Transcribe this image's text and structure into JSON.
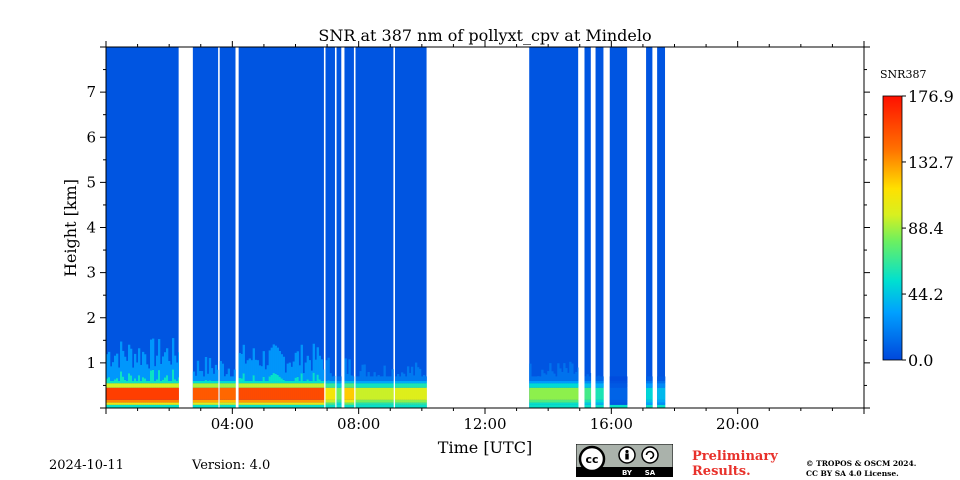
{
  "chart_data": {
    "type": "heatmap",
    "title": "SNR at 387 nm of pollyxt_cpv at Mindelo",
    "xlabel": "Time [UTC]",
    "ylabel": "Height [km]",
    "xlim": [
      0,
      24
    ],
    "ylim": [
      0,
      8
    ],
    "x_ticks": [
      {
        "value": 4,
        "label": "04:00"
      },
      {
        "value": 8,
        "label": "08:00"
      },
      {
        "value": 12,
        "label": "12:00"
      },
      {
        "value": 16,
        "label": "16:00"
      },
      {
        "value": 20,
        "label": "20:00"
      }
    ],
    "y_ticks": [
      {
        "value": 1,
        "label": "1"
      },
      {
        "value": 2,
        "label": "2"
      },
      {
        "value": 3,
        "label": "3"
      },
      {
        "value": 4,
        "label": "4"
      },
      {
        "value": 5,
        "label": "5"
      },
      {
        "value": 6,
        "label": "6"
      },
      {
        "value": 7,
        "label": "7"
      }
    ],
    "colorbar": {
      "label": "SNR387",
      "min": 0.0,
      "max": 176.9,
      "ticks": [
        {
          "value": 0.0,
          "label": "0.0"
        },
        {
          "value": 44.2,
          "label": "44.2"
        },
        {
          "value": 88.4,
          "label": "88.4"
        },
        {
          "value": 132.7,
          "label": "132.7"
        },
        {
          "value": 176.9,
          "label": "176.9"
        }
      ],
      "colormap": "jet"
    },
    "measurement_periods_utc": [
      {
        "start": 0.0,
        "end": 2.3,
        "low_snr": 160,
        "boundary_km": 1.2
      },
      {
        "start": 2.75,
        "end": 3.55,
        "low_snr": 150,
        "boundary_km": 0.9
      },
      {
        "start": 3.6,
        "end": 4.1,
        "low_snr": 145,
        "boundary_km": 0.9
      },
      {
        "start": 4.2,
        "end": 6.9,
        "low_snr": 155,
        "boundary_km": 1.1
      },
      {
        "start": 6.95,
        "end": 7.25,
        "low_snr": 110,
        "boundary_km": 0.9
      },
      {
        "start": 7.3,
        "end": 7.45,
        "low_snr": 80,
        "boundary_km": 0.6
      },
      {
        "start": 7.55,
        "end": 7.85,
        "low_snr": 120,
        "boundary_km": 0.9
      },
      {
        "start": 7.9,
        "end": 9.1,
        "low_snr": 95,
        "boundary_km": 0.8
      },
      {
        "start": 9.15,
        "end": 10.15,
        "low_snr": 100,
        "boundary_km": 0.8
      },
      {
        "start": 13.4,
        "end": 14.95,
        "low_snr": 85,
        "boundary_km": 0.8
      },
      {
        "start": 15.15,
        "end": 15.35,
        "low_snr": 70,
        "boundary_km": 0.6
      },
      {
        "start": 15.5,
        "end": 15.75,
        "low_snr": 60,
        "boundary_km": 0.6
      },
      {
        "start": 15.95,
        "end": 16.5,
        "low_snr": 10,
        "boundary_km": 0.3
      },
      {
        "start": 17.1,
        "end": 17.3,
        "low_snr": 50,
        "boundary_km": 0.5
      },
      {
        "start": 17.45,
        "end": 17.7,
        "low_snr": 40,
        "boundary_km": 0.5
      }
    ],
    "background_snr": 5
  },
  "footer": {
    "date": "2024-10-11",
    "version": "Version: 4.0",
    "preliminary_line1": "Preliminary",
    "preliminary_line2": "Results.",
    "copyright_line1": "© TROPOS & OSCM 2024.",
    "copyright_line2": "CC BY SA 4.0 License.",
    "cc_badge": {
      "cc": "cc",
      "by": "BY",
      "sa": "SA"
    }
  },
  "colors": {
    "background_blue": "#0047dc",
    "jet_stops": [
      "#00007f",
      "#0000ff",
      "#007fff",
      "#00ffff",
      "#7fff7f",
      "#ffff00",
      "#ff7f00",
      "#ff0000",
      "#7f0000"
    ]
  }
}
